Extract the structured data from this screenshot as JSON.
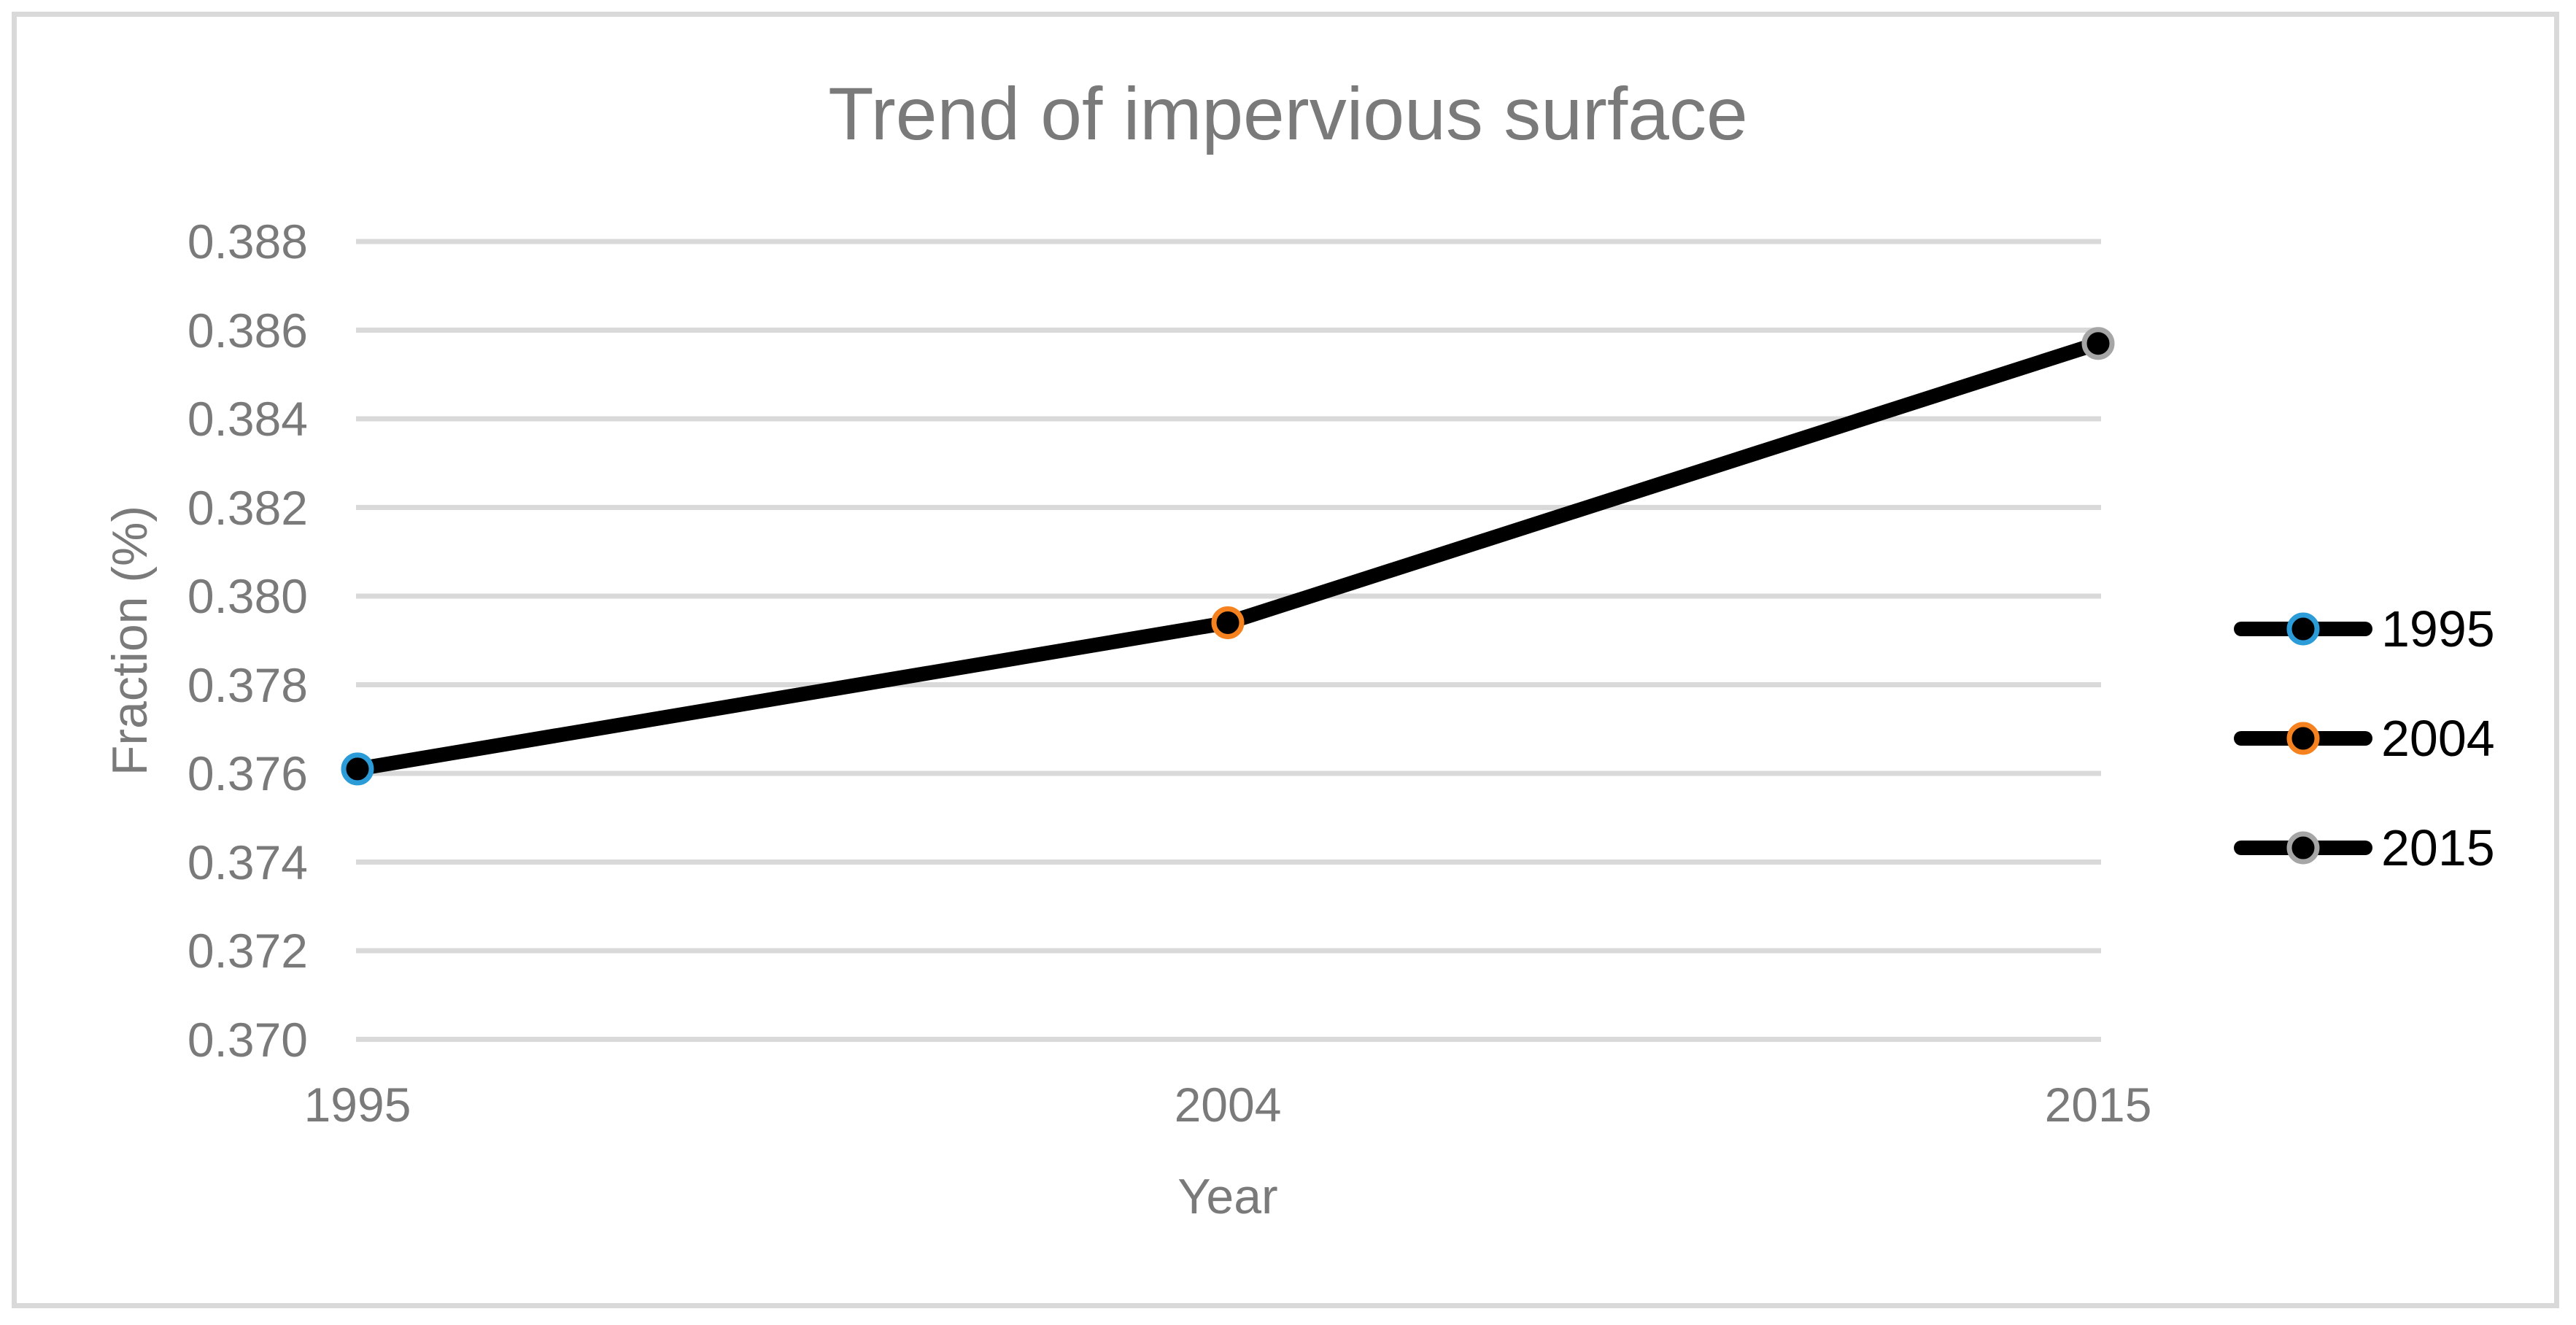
{
  "chart_data": {
    "type": "line",
    "title": "Trend of impervious surface",
    "xlabel": "Year",
    "ylabel": "Fraction (%)",
    "categories": [
      "1995",
      "2004",
      "2015"
    ],
    "series": [
      {
        "values": [
          0.3761,
          0.3794,
          0.3857
        ]
      }
    ],
    "ylim": [
      0.37,
      0.388
    ],
    "ytick_step": 0.002,
    "ytick_labels": [
      "0.388",
      "0.386",
      "0.384",
      "0.382",
      "0.380",
      "0.378",
      "0.376",
      "0.374",
      "0.372",
      "0.370"
    ],
    "grid": true,
    "line_color": "#000000",
    "legend": {
      "position": "right",
      "entries": [
        {
          "label": "1995",
          "marker_color": "#2B9CD8"
        },
        {
          "label": "2004",
          "marker_color": "#F5821F"
        },
        {
          "label": "2015",
          "marker_color": "#A6A6A6"
        }
      ]
    }
  },
  "colors": {
    "gridline": "#D9D9D9",
    "frame_border": "#D9D9D9",
    "axis_text": "#7A7A7A",
    "legend_text": "#000000"
  }
}
